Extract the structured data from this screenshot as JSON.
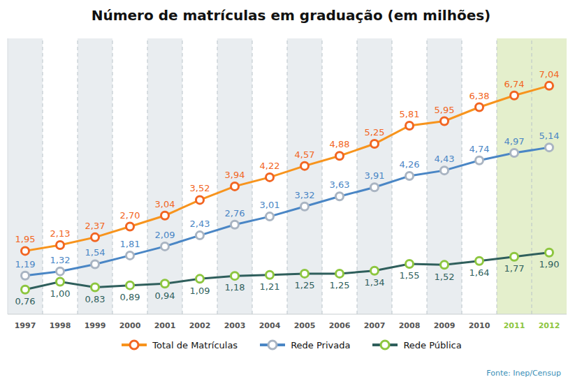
{
  "chart_data": {
    "type": "line",
    "title": "Número de matrículas em graduação (em milhões)",
    "x": [
      1997,
      1998,
      1999,
      2000,
      2001,
      2002,
      2003,
      2004,
      2005,
      2006,
      2007,
      2008,
      2009,
      2010,
      2011,
      2012
    ],
    "xlim": [
      1996.5,
      2012.5
    ],
    "xticks": [
      1997,
      1998,
      1999,
      2000,
      2001,
      2002,
      2003,
      2004,
      2005,
      2006,
      2007,
      2008,
      2009,
      2010,
      2011,
      2012
    ],
    "ylim": [
      0,
      8.5
    ],
    "tick_labels": "x",
    "legend": "bottom",
    "data_labels": true,
    "marker": "circle",
    "series": [
      {
        "name": "Total de Matrículas",
        "color": "#f7941d",
        "values": [
          1.95,
          2.13,
          2.37,
          2.7,
          3.04,
          3.52,
          3.94,
          4.22,
          4.57,
          4.88,
          5.25,
          5.81,
          5.95,
          6.38,
          6.74,
          7.04
        ],
        "value_labels": [
          "1,95",
          "2,13",
          "2,37",
          "2,70",
          "3,04",
          "3,52",
          "3,94",
          "4,22",
          "4,57",
          "4,88",
          "5,25",
          "5,81",
          "5,95",
          "6,38",
          "6,74",
          "7,04"
        ]
      },
      {
        "name": "Rede Privada",
        "color": "#4a86c5",
        "values": [
          1.19,
          1.32,
          1.54,
          1.81,
          2.09,
          2.43,
          2.76,
          3.01,
          3.32,
          3.63,
          3.91,
          4.26,
          4.43,
          4.74,
          4.97,
          5.14
        ],
        "value_labels": [
          "1,19",
          "1,32",
          "1,54",
          "1,81",
          "2,09",
          "2,43",
          "2,76",
          "3,01",
          "3,32",
          "3,63",
          "3,91",
          "4,26",
          "4,43",
          "4,74",
          "4,97",
          "5,14"
        ]
      },
      {
        "name": "Rede Pública",
        "color": "#2f5f5c",
        "values": [
          0.76,
          1.0,
          0.83,
          0.89,
          0.94,
          1.09,
          1.18,
          1.21,
          1.25,
          1.25,
          1.34,
          1.55,
          1.52,
          1.64,
          1.77,
          1.9
        ],
        "value_labels": [
          "0,76",
          "1,00",
          "0,83",
          "0,89",
          "0,94",
          "1,09",
          "1,18",
          "1,21",
          "1,25",
          "1,25",
          "1,34",
          "1,55",
          "1,52",
          "1,64",
          "1,77",
          "1,90"
        ]
      }
    ],
    "annotations": [
      "Fonte: Inep/Censup"
    ]
  }
}
